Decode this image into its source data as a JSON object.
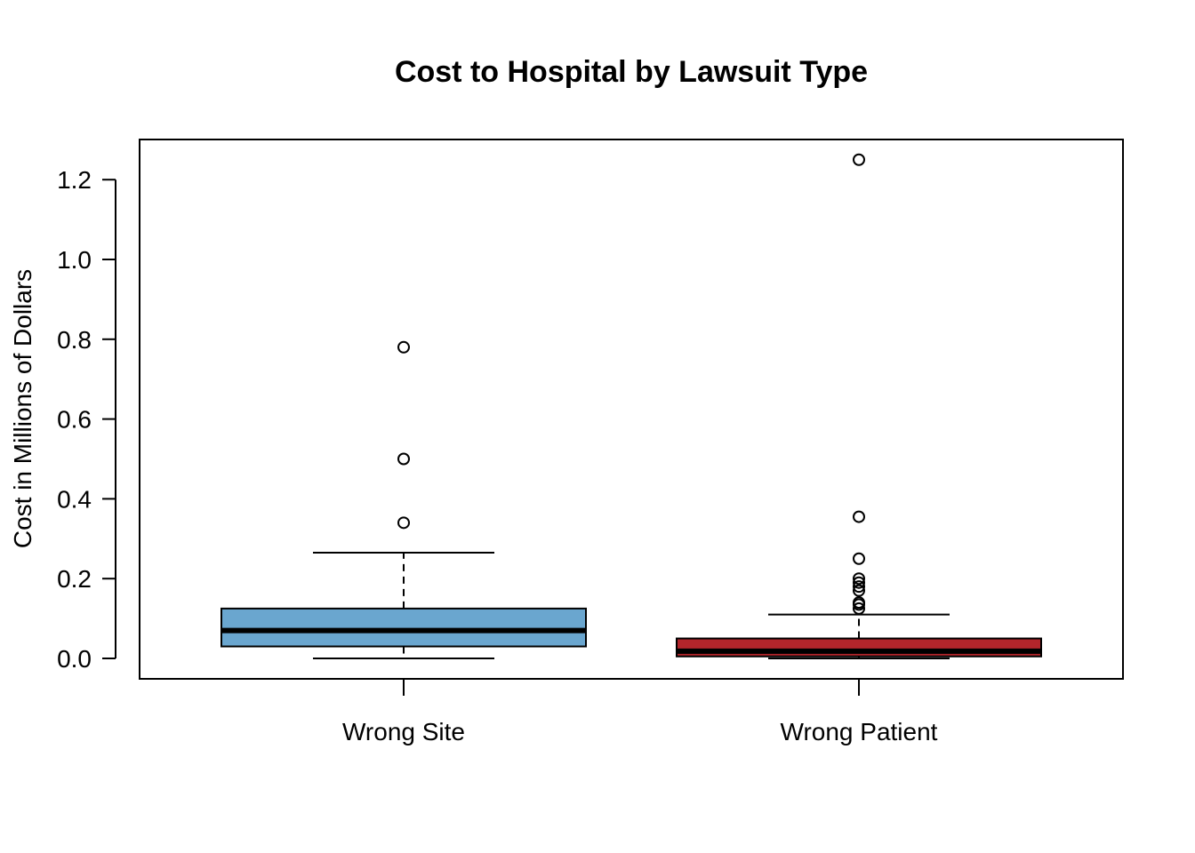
{
  "chart_data": {
    "type": "boxplot",
    "title": "Cost to Hospital by Lawsuit Type",
    "xlabel": "",
    "ylabel": "Cost in Millions of Dollars",
    "ylim": [
      -0.05,
      1.3
    ],
    "yticks": [
      0.0,
      0.2,
      0.4,
      0.6,
      0.8,
      1.0,
      1.2
    ],
    "ytick_labels": [
      "0.0",
      "0.2",
      "0.4",
      "0.6",
      "0.8",
      "1.0",
      "1.2"
    ],
    "grid": false,
    "legend": "none",
    "groups": [
      {
        "category": "Wrong Site",
        "color": "#6aa6cf",
        "whisker_low": 0.0,
        "q1": 0.03,
        "median": 0.07,
        "q3": 0.125,
        "whisker_high": 0.265,
        "outliers": [
          0.34,
          0.5,
          0.78
        ]
      },
      {
        "category": "Wrong Patient",
        "color": "#b2252b",
        "whisker_low": 0.0,
        "q1": 0.005,
        "median": 0.018,
        "q3": 0.05,
        "whisker_high": 0.11,
        "outliers": [
          0.125,
          0.135,
          0.14,
          0.17,
          0.18,
          0.19,
          0.2,
          0.25,
          0.355,
          1.25
        ]
      }
    ]
  }
}
